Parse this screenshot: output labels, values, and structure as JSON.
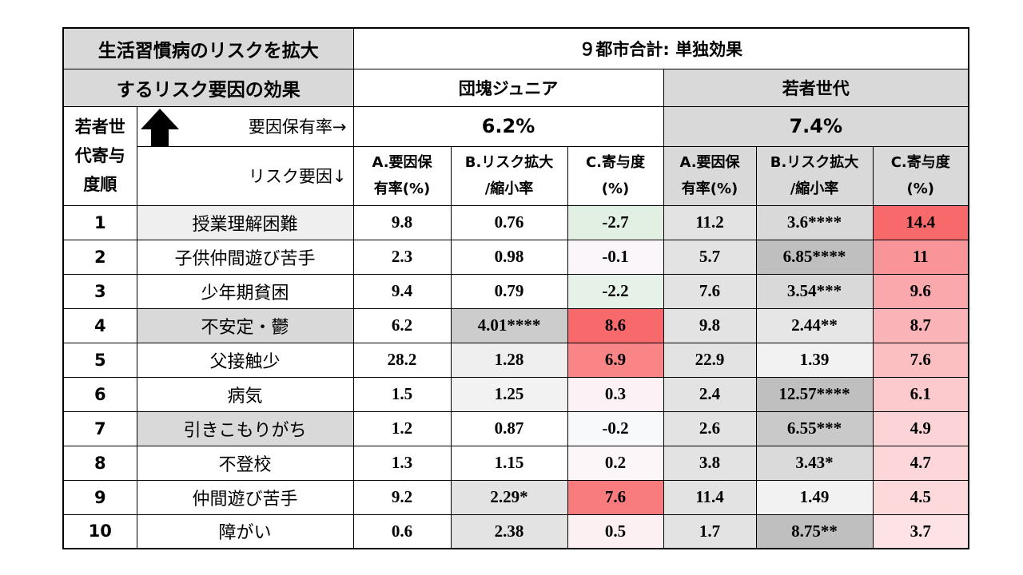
{
  "title": {
    "line1": "生活習慣病のリスクを拡大",
    "line2": "するリスク要因の効果"
  },
  "header": {
    "main": "９都市合計: 単独効果",
    "group1": "団塊ジュニア",
    "group2": "若者世代",
    "rate_label": "要因保有率→",
    "factor_label": "リスク要因↓",
    "rank_label_lines": [
      "若者世",
      "代寄与",
      "度順"
    ],
    "group1_rate": "6.2%",
    "group2_rate": "7.4%",
    "colA": [
      "A.要因保",
      "有率(%)"
    ],
    "colB": [
      "B.リスク拡大",
      "/縮小率"
    ],
    "colC": [
      "C.寄与度",
      "(%)"
    ]
  },
  "arrow": {
    "icon": "up-arrow-icon",
    "color": "#000000"
  },
  "colors": {
    "gray": "#d9d9d9",
    "light_gray": "#efefef",
    "green": "#e2f0e4",
    "red_strong": "#f8696b",
    "red_pale": "#fdf0f2"
  },
  "rows": [
    {
      "rank": "1",
      "factor": "授業理解困難",
      "g1": {
        "a": "9.8",
        "b": "0.76",
        "c": "-2.7"
      },
      "g2": {
        "a": "11.2",
        "b": "3.6****",
        "c": "14.4"
      }
    },
    {
      "rank": "2",
      "factor": "子供仲間遊び苦手",
      "g1": {
        "a": "2.3",
        "b": "0.98",
        "c": "-0.1"
      },
      "g2": {
        "a": "5.7",
        "b": "6.85****",
        "c": "11"
      }
    },
    {
      "rank": "3",
      "factor": "少年期貧困",
      "g1": {
        "a": "9.4",
        "b": "0.79",
        "c": "-2.2"
      },
      "g2": {
        "a": "7.6",
        "b": "3.54***",
        "c": "9.6"
      }
    },
    {
      "rank": "4",
      "factor": "不安定・鬱",
      "g1": {
        "a": "6.2",
        "b": "4.01****",
        "c": "8.6"
      },
      "g2": {
        "a": "9.8",
        "b": "2.44**",
        "c": "8.7"
      }
    },
    {
      "rank": "5",
      "factor": "父接触少",
      "g1": {
        "a": "28.2",
        "b": "1.28",
        "c": "6.9"
      },
      "g2": {
        "a": "22.9",
        "b": "1.39",
        "c": "7.6"
      }
    },
    {
      "rank": "6",
      "factor": "病気",
      "g1": {
        "a": "1.5",
        "b": "1.25",
        "c": "0.3"
      },
      "g2": {
        "a": "2.4",
        "b": "12.57****",
        "c": "6.1"
      }
    },
    {
      "rank": "7",
      "factor": "引きこもりがち",
      "g1": {
        "a": "1.2",
        "b": "0.87",
        "c": "-0.2"
      },
      "g2": {
        "a": "2.6",
        "b": "6.55***",
        "c": "4.9"
      }
    },
    {
      "rank": "8",
      "factor": "不登校",
      "g1": {
        "a": "1.3",
        "b": "1.15",
        "c": "0.2"
      },
      "g2": {
        "a": "3.8",
        "b": "3.43*",
        "c": "4.7"
      }
    },
    {
      "rank": "9",
      "factor": "仲間遊び苦手",
      "g1": {
        "a": "9.2",
        "b": "2.29*",
        "c": "7.6"
      },
      "g2": {
        "a": "11.4",
        "b": "1.49",
        "c": "4.5"
      }
    },
    {
      "rank": "10",
      "factor": "障がい",
      "g1": {
        "a": "0.6",
        "b": "2.38",
        "c": "0.5"
      },
      "g2": {
        "a": "1.7",
        "b": "8.75**",
        "c": "3.7"
      }
    }
  ]
}
